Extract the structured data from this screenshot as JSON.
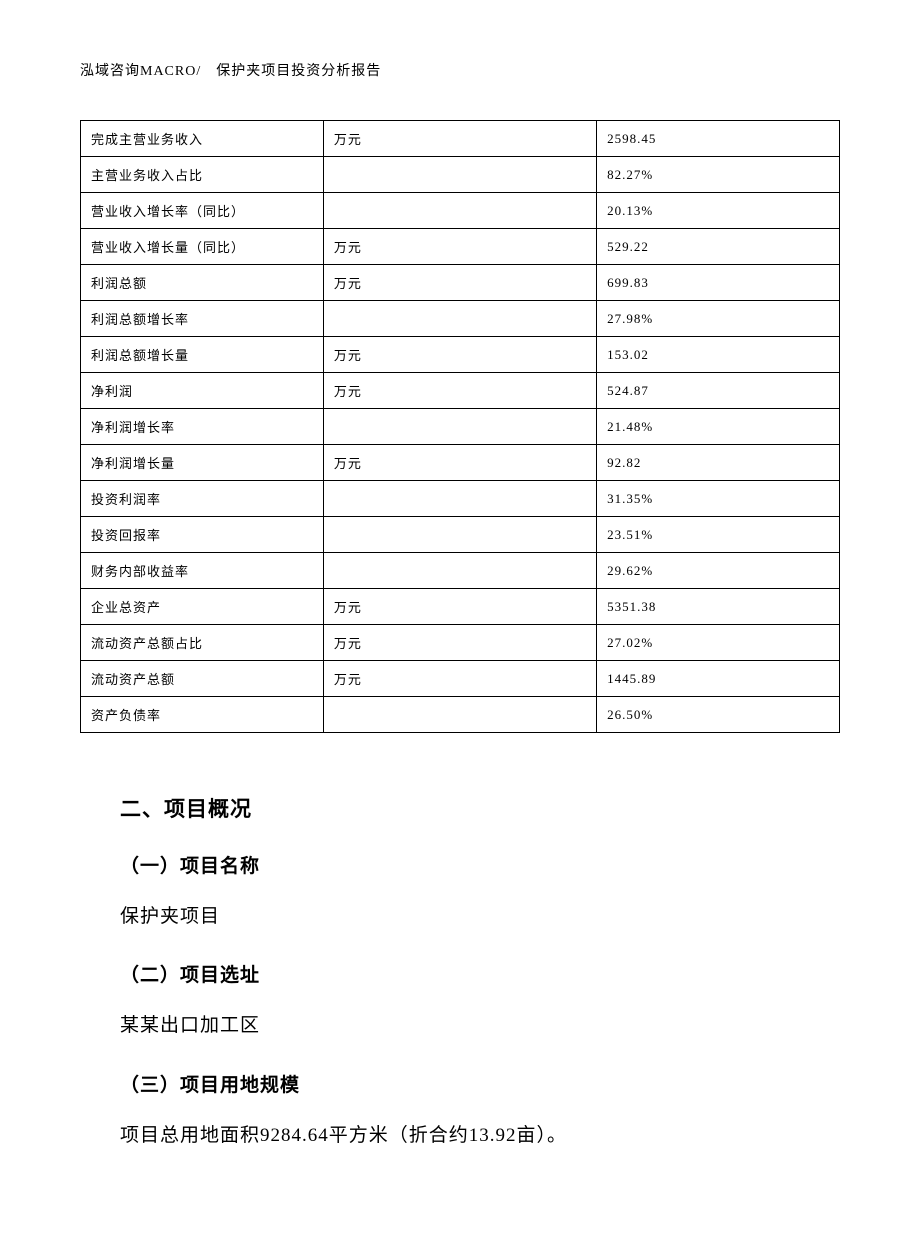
{
  "header": {
    "breadcrumb": "泓域咨询MACRO/　保护夹项目投资分析报告"
  },
  "table": {
    "columns_width_pct": [
      32,
      36,
      32
    ],
    "border_color": "#000000",
    "font_size_pt": 10,
    "rows": [
      {
        "label": "完成主营业务收入",
        "unit": "万元",
        "value": "2598.45"
      },
      {
        "label": "主营业务收入占比",
        "unit": "",
        "value": "82.27%"
      },
      {
        "label": "营业收入增长率（同比）",
        "unit": "",
        "value": "20.13%"
      },
      {
        "label": "营业收入增长量（同比）",
        "unit": "万元",
        "value": "529.22"
      },
      {
        "label": "利润总额",
        "unit": "万元",
        "value": "699.83"
      },
      {
        "label": "利润总额增长率",
        "unit": "",
        "value": "27.98%"
      },
      {
        "label": "利润总额增长量",
        "unit": "万元",
        "value": "153.02"
      },
      {
        "label": "净利润",
        "unit": "万元",
        "value": "524.87"
      },
      {
        "label": "净利润增长率",
        "unit": "",
        "value": "21.48%"
      },
      {
        "label": "净利润增长量",
        "unit": "万元",
        "value": "92.82"
      },
      {
        "label": "投资利润率",
        "unit": "",
        "value": "31.35%"
      },
      {
        "label": "投资回报率",
        "unit": "",
        "value": "23.51%"
      },
      {
        "label": "财务内部收益率",
        "unit": "",
        "value": "29.62%"
      },
      {
        "label": "企业总资产",
        "unit": "万元",
        "value": "5351.38"
      },
      {
        "label": "流动资产总额占比",
        "unit": "万元",
        "value": "27.02%"
      },
      {
        "label": "流动资产总额",
        "unit": "万元",
        "value": "1445.89"
      },
      {
        "label": "资产负债率",
        "unit": "",
        "value": "26.50%"
      }
    ]
  },
  "sections": {
    "s2_title": "二、项目概况",
    "s2_1_title": "（一）项目名称",
    "s2_1_body": "保护夹项目",
    "s2_2_title": "（二）项目选址",
    "s2_2_body": "某某出口加工区",
    "s2_3_title": "（三）项目用地规模",
    "s2_3_body": "项目总用地面积9284.64平方米（折合约13.92亩）。"
  },
  "style": {
    "page_bg": "#ffffff",
    "text_color": "#000000",
    "heading_font": "SimHei",
    "body_font": "SimSun",
    "heading_size_pt": 16,
    "subheading_size_pt": 14,
    "body_size_pt": 14
  }
}
